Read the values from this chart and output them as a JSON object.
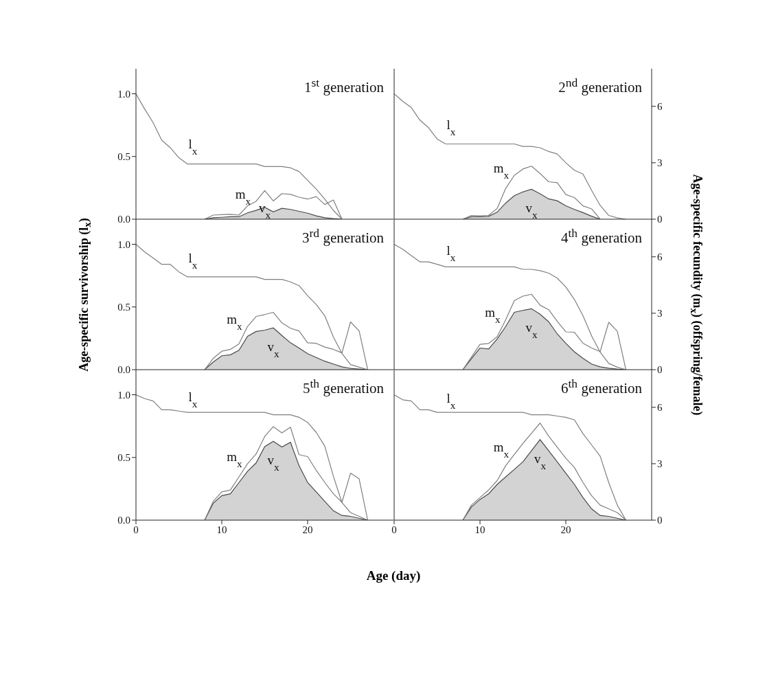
{
  "chart_data": [
    {
      "type": "line",
      "title": "1$^{st}$ generation",
      "x": [
        0,
        1,
        2,
        3,
        4,
        5,
        6,
        7,
        8,
        9,
        10,
        11,
        12,
        13,
        14,
        15,
        16,
        17,
        18,
        19,
        20,
        21,
        22,
        23,
        24
      ],
      "xlim": [
        0,
        30
      ],
      "ylim": [
        0,
        1.2
      ],
      "yticks": [
        {
          "value": 0,
          "label": "0.0"
        },
        {
          "value": 0.5,
          "label": "0.5"
        },
        {
          "value": 1,
          "label": "1.0"
        }
      ],
      "y2lim": [
        0,
        8
      ],
      "tick_labels": "y",
      "series": [
        {
          "name": "l$_{x}$",
          "color": "#7f7f7f",
          "axis": "y",
          "values": [
            1.0,
            0.88,
            0.77,
            0.63,
            0.57,
            0.49,
            0.44,
            0.44,
            0.44,
            0.44,
            0.44,
            0.44,
            0.44,
            0.44,
            0.44,
            0.42,
            0.42,
            0.42,
            0.41,
            0.38,
            0.31,
            0.24,
            0.16,
            0.07,
            0
          ]
        },
        {
          "name": "m$_{x}$",
          "color": "#7f7f7f",
          "axis": "y2",
          "values": [
            null,
            null,
            null,
            null,
            null,
            null,
            null,
            null,
            0,
            0.22,
            0.24,
            0.26,
            0.22,
            0.71,
            0.95,
            1.52,
            0.97,
            1.36,
            1.32,
            1.17,
            1.07,
            1.2,
            0.78,
            1.02,
            0
          ]
        },
        {
          "name": "v$_{x}$",
          "type": "area",
          "color": "#d3d3d3",
          "axis": "y2",
          "values": [
            null,
            null,
            null,
            null,
            null,
            null,
            null,
            null,
            0,
            0.08,
            0.1,
            0.13,
            0.13,
            0.34,
            0.47,
            0.63,
            0.39,
            0.58,
            0.52,
            0.42,
            0.32,
            0.18,
            0.08,
            0.03,
            0
          ]
        }
      ]
    },
    {
      "type": "line",
      "title": "2$^{nd}$ generation",
      "x": [
        0,
        1,
        2,
        3,
        4,
        5,
        6,
        7,
        8,
        9,
        10,
        11,
        12,
        13,
        14,
        15,
        16,
        17,
        18,
        19,
        20,
        21,
        22,
        23,
        24,
        25,
        26,
        27
      ],
      "xlim": [
        0,
        30
      ],
      "ylim": [
        0,
        1.2
      ],
      "y2lim": [
        0,
        8
      ],
      "y2ticks": [
        0,
        3,
        6
      ],
      "tick_labels": "y2",
      "series": [
        {
          "name": "l$_{x}$",
          "color": "#7f7f7f",
          "axis": "y",
          "values": [
            1.0,
            0.94,
            0.89,
            0.79,
            0.73,
            0.64,
            0.6,
            0.6,
            0.6,
            0.6,
            0.6,
            0.6,
            0.6,
            0.6,
            0.6,
            0.58,
            0.58,
            0.57,
            0.54,
            0.52,
            0.45,
            0.39,
            0.36,
            0.23,
            0.11,
            0.03,
            0.01,
            0
          ]
        },
        {
          "name": "m$_{x}$",
          "color": "#7f7f7f",
          "axis": "y2",
          "values": [
            null,
            null,
            null,
            null,
            null,
            null,
            null,
            null,
            0,
            0.2,
            0.18,
            0.2,
            0.57,
            1.64,
            2.33,
            2.67,
            2.82,
            2.43,
            1.99,
            1.94,
            1.31,
            1.15,
            0.71,
            0.55,
            0,
            null,
            null,
            null
          ]
        },
        {
          "name": "v$_{x}$",
          "type": "area",
          "color": "#d3d3d3",
          "axis": "y2",
          "values": [
            null,
            null,
            null,
            null,
            null,
            null,
            null,
            null,
            0,
            0.13,
            0.13,
            0.15,
            0.37,
            0.86,
            1.25,
            1.45,
            1.59,
            1.35,
            1.08,
            0.98,
            0.71,
            0.52,
            0.35,
            0.16,
            0,
            null,
            null,
            null
          ]
        }
      ]
    },
    {
      "type": "line",
      "title": "3$^{rd}$ generation",
      "ylabel": "Age-specific survivorship (l$_{x}$)",
      "x": [
        0,
        1,
        2,
        3,
        4,
        5,
        6,
        7,
        8,
        9,
        10,
        11,
        12,
        13,
        14,
        15,
        16,
        17,
        18,
        19,
        20,
        21,
        22,
        23,
        24,
        25,
        26,
        27
      ],
      "xlim": [
        0,
        30
      ],
      "ylim": [
        0,
        1.2
      ],
      "yticks": [
        {
          "value": 0,
          "label": "0.0"
        },
        {
          "value": 0.5,
          "label": "0.5"
        },
        {
          "value": 1,
          "label": "1.0"
        }
      ],
      "y2lim": [
        0,
        8
      ],
      "tick_labels": "y",
      "series": [
        {
          "name": "l$_{x}$",
          "color": "#7f7f7f",
          "axis": "y",
          "values": [
            1.0,
            0.94,
            0.89,
            0.84,
            0.84,
            0.78,
            0.74,
            0.74,
            0.74,
            0.74,
            0.74,
            0.74,
            0.74,
            0.74,
            0.74,
            0.72,
            0.72,
            0.72,
            0.7,
            0.67,
            0.59,
            0.52,
            0.43,
            0.26,
            0.13,
            0.04,
            0.02,
            0
          ]
        },
        {
          "name": "m$_{x}$",
          "color": "#7f7f7f",
          "axis": "y2",
          "values": [
            null,
            null,
            null,
            null,
            null,
            null,
            null,
            null,
            0,
            0.6,
            0.98,
            1.08,
            1.37,
            2.3,
            2.83,
            2.93,
            3.05,
            2.49,
            2.2,
            2.06,
            1.43,
            1.4,
            1.2,
            1.08,
            0.89,
            2.54,
            2.06,
            0
          ]
        },
        {
          "name": "v$_{x}$",
          "type": "area",
          "color": "#d3d3d3",
          "axis": "y2",
          "values": [
            null,
            null,
            null,
            null,
            null,
            null,
            null,
            null,
            0,
            0.4,
            0.74,
            0.79,
            1.03,
            1.77,
            2.03,
            2.1,
            2.22,
            1.82,
            1.43,
            1.15,
            0.85,
            0.65,
            0.45,
            0.3,
            0.15,
            0.07,
            0.03,
            0
          ]
        }
      ]
    },
    {
      "type": "line",
      "title": "4$^{th}$ generation",
      "y2label": "Age-specific fecundity (m$_{x}$) (offspring/female)",
      "x": [
        0,
        1,
        2,
        3,
        4,
        5,
        6,
        7,
        8,
        9,
        10,
        11,
        12,
        13,
        14,
        15,
        16,
        17,
        18,
        19,
        20,
        21,
        22,
        23,
        24,
        25,
        26,
        27
      ],
      "xlim": [
        0,
        30
      ],
      "ylim": [
        0,
        1.2
      ],
      "y2lim": [
        0,
        8
      ],
      "y2ticks": [
        0,
        3,
        6
      ],
      "tick_labels": "y2",
      "series": [
        {
          "name": "l$_{x}$",
          "color": "#7f7f7f",
          "axis": "y",
          "values": [
            1.0,
            0.96,
            0.91,
            0.86,
            0.86,
            0.84,
            0.82,
            0.82,
            0.82,
            0.82,
            0.82,
            0.82,
            0.82,
            0.82,
            0.82,
            0.8,
            0.8,
            0.79,
            0.77,
            0.73,
            0.66,
            0.56,
            0.43,
            0.27,
            0.14,
            0.05,
            0.02,
            0
          ]
        },
        {
          "name": "m$_{x}$",
          "color": "#7f7f7f",
          "axis": "y2",
          "values": [
            null,
            null,
            null,
            null,
            null,
            null,
            null,
            null,
            0,
            0.67,
            1.35,
            1.39,
            1.75,
            2.66,
            3.67,
            3.91,
            4.01,
            3.43,
            3.19,
            2.57,
            2.01,
            1.99,
            1.41,
            1.15,
            0.96,
            2.52,
            2.04,
            0
          ]
        },
        {
          "name": "v$_{x}$",
          "type": "area",
          "color": "#d3d3d3",
          "axis": "y2",
          "values": [
            null,
            null,
            null,
            null,
            null,
            null,
            null,
            null,
            0,
            0.58,
            1.15,
            1.1,
            1.63,
            2.3,
            3.05,
            3.15,
            3.24,
            2.95,
            2.55,
            1.9,
            1.4,
            0.95,
            0.6,
            0.3,
            0.15,
            0.08,
            0.03,
            0
          ]
        }
      ]
    },
    {
      "type": "line",
      "title": "5$^{th}$ generation",
      "xlabel": "Age (day)",
      "x": [
        0,
        1,
        2,
        3,
        4,
        5,
        6,
        7,
        8,
        9,
        10,
        11,
        12,
        13,
        14,
        15,
        16,
        17,
        18,
        19,
        20,
        21,
        22,
        23,
        24,
        25,
        26,
        27
      ],
      "xlim": [
        0,
        30
      ],
      "xticks": [
        0,
        10,
        20
      ],
      "ylim": [
        0,
        1.2
      ],
      "yticks": [
        {
          "value": 0,
          "label": "0.0"
        },
        {
          "value": 0.5,
          "label": "0.5"
        },
        {
          "value": 1,
          "label": "1.0"
        }
      ],
      "y2lim": [
        0,
        8
      ],
      "tick_labels": "xy",
      "series": [
        {
          "name": "l$_{x}$",
          "color": "#7f7f7f",
          "axis": "y",
          "values": [
            1.0,
            0.97,
            0.95,
            0.88,
            0.88,
            0.87,
            0.86,
            0.86,
            0.86,
            0.86,
            0.86,
            0.86,
            0.86,
            0.86,
            0.86,
            0.86,
            0.84,
            0.84,
            0.84,
            0.82,
            0.78,
            0.7,
            0.59,
            0.35,
            0.14,
            0.06,
            0.03,
            0
          ]
        },
        {
          "name": "m$_{x}$",
          "color": "#7f7f7f",
          "axis": "y2",
          "values": [
            null,
            null,
            null,
            null,
            null,
            null,
            null,
            null,
            0,
            1.0,
            1.5,
            1.6,
            2.3,
            3.0,
            3.52,
            4.45,
            4.97,
            4.64,
            4.94,
            3.48,
            3.38,
            2.65,
            2.0,
            1.4,
            0.95,
            2.5,
            2.2,
            0
          ]
        },
        {
          "name": "v$_{x}$",
          "type": "area",
          "color": "#d3d3d3",
          "axis": "y2",
          "values": [
            null,
            null,
            null,
            null,
            null,
            null,
            null,
            null,
            0,
            0.9,
            1.3,
            1.4,
            2.0,
            2.6,
            3.04,
            3.91,
            4.19,
            3.89,
            4.14,
            2.9,
            2.0,
            1.5,
            1.0,
            0.5,
            0.25,
            0.2,
            0.1,
            0
          ]
        }
      ]
    },
    {
      "type": "line",
      "title": "6$^{th}$ generation",
      "x": [
        0,
        1,
        2,
        3,
        4,
        5,
        6,
        7,
        8,
        9,
        10,
        11,
        12,
        13,
        14,
        15,
        16,
        17,
        18,
        19,
        20,
        21,
        22,
        23,
        24,
        25,
        26,
        27
      ],
      "xlim": [
        0,
        30
      ],
      "xticks": [
        0,
        10,
        20
      ],
      "ylim": [
        0,
        1.2
      ],
      "y2lim": [
        0,
        8
      ],
      "y2ticks": [
        0,
        3,
        6
      ],
      "tick_labels": "xy2",
      "series": [
        {
          "name": "l$_{x}$",
          "color": "#7f7f7f",
          "axis": "y",
          "values": [
            1.0,
            0.96,
            0.95,
            0.88,
            0.88,
            0.86,
            0.86,
            0.86,
            0.86,
            0.86,
            0.86,
            0.86,
            0.86,
            0.86,
            0.86,
            0.86,
            0.84,
            0.84,
            0.84,
            0.83,
            0.82,
            0.8,
            0.69,
            0.6,
            0.51,
            0.3,
            0.12,
            0
          ]
        },
        {
          "name": "m$_{x}$",
          "color": "#7f7f7f",
          "axis": "y2",
          "values": [
            null,
            null,
            null,
            null,
            null,
            null,
            null,
            null,
            0,
            0.8,
            1.2,
            1.6,
            2.1,
            2.9,
            3.49,
            4.08,
            4.62,
            5.16,
            4.47,
            3.88,
            3.29,
            2.8,
            2.0,
            1.3,
            0.8,
            0.6,
            0.4,
            0
          ]
        },
        {
          "name": "v$_{x}$",
          "type": "area",
          "color": "#d3d3d3",
          "axis": "y2",
          "values": [
            null,
            null,
            null,
            null,
            null,
            null,
            null,
            null,
            0,
            0.7,
            1.1,
            1.4,
            1.9,
            2.3,
            2.7,
            3.1,
            3.69,
            4.28,
            3.69,
            3.1,
            2.5,
            1.9,
            1.2,
            0.6,
            0.25,
            0.2,
            0.1,
            0
          ]
        }
      ]
    }
  ]
}
